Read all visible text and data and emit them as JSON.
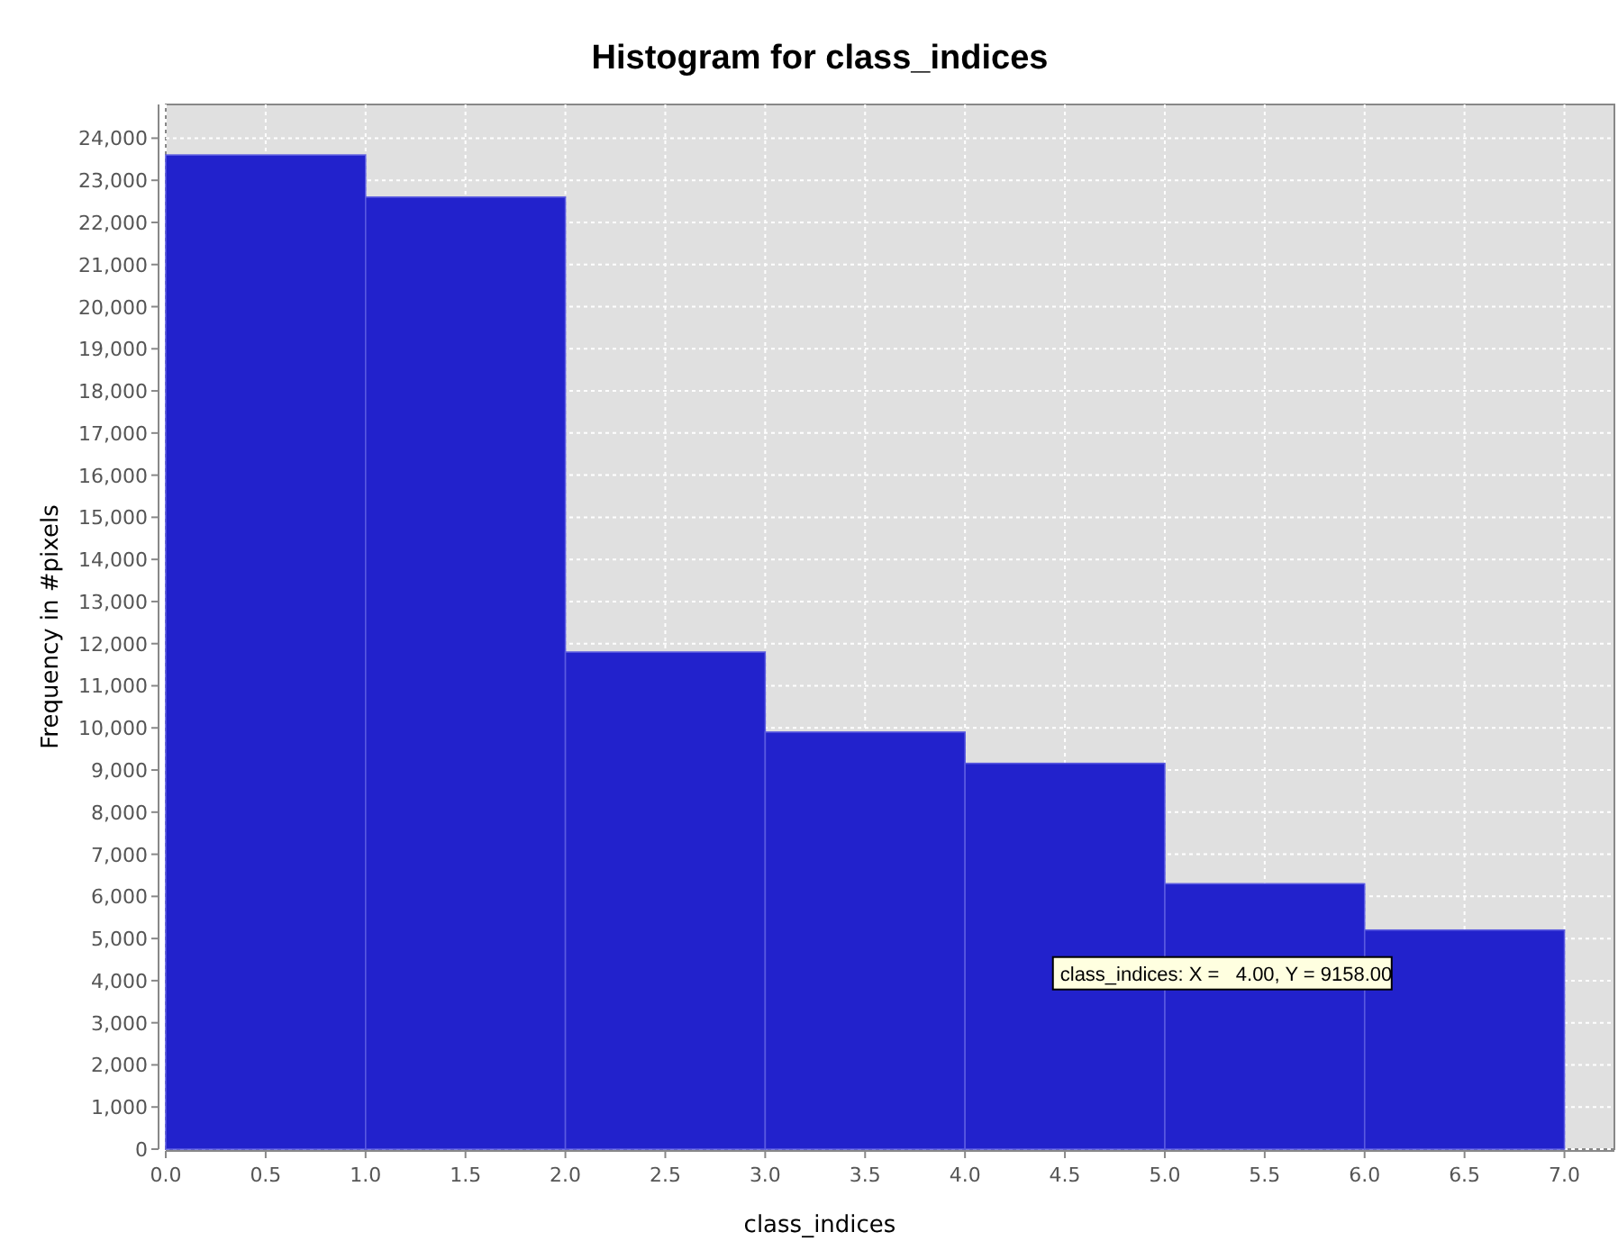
{
  "chart_data": {
    "type": "histogram",
    "title": "Histogram for class_indices",
    "xlabel": "class_indices",
    "ylabel": "Frequency in #pixels",
    "bins": [
      0,
      1,
      2,
      3,
      4,
      5,
      6,
      7
    ],
    "values": [
      23600,
      22600,
      11800,
      9900,
      9158,
      6300,
      5200
    ],
    "color": "#2222cc",
    "xlim": [
      0,
      7.25
    ],
    "xticks": [
      {
        "value": 0,
        "label": "0.0"
      },
      0.5,
      {
        "value": 1,
        "label": "1.0"
      },
      1.5,
      {
        "value": 2,
        "label": "2.0"
      },
      2.5,
      {
        "value": 3,
        "label": "3.0"
      },
      3.5,
      {
        "value": 4,
        "label": "4.0"
      },
      4.5,
      {
        "value": 5,
        "label": "5.0"
      },
      5.5,
      {
        "value": 6,
        "label": "6.0"
      },
      6.5,
      {
        "value": 7,
        "label": "7.0"
      }
    ],
    "ylim": [
      0,
      24800
    ],
    "yticks": [
      0,
      {
        "value": 1000,
        "label": "1,000"
      },
      {
        "value": 2000,
        "label": "2,000"
      },
      {
        "value": 3000,
        "label": "3,000"
      },
      {
        "value": 4000,
        "label": "4,000"
      },
      {
        "value": 5000,
        "label": "5,000"
      },
      {
        "value": 6000,
        "label": "6,000"
      },
      {
        "value": 7000,
        "label": "7,000"
      },
      {
        "value": 8000,
        "label": "8,000"
      },
      {
        "value": 9000,
        "label": "9,000"
      },
      {
        "value": 10000,
        "label": "10,000"
      },
      {
        "value": 11000,
        "label": "11,000"
      },
      {
        "value": 12000,
        "label": "12,000"
      },
      {
        "value": 13000,
        "label": "13,000"
      },
      {
        "value": 14000,
        "label": "14,000"
      },
      {
        "value": 15000,
        "label": "15,000"
      },
      {
        "value": 16000,
        "label": "16,000"
      },
      {
        "value": 17000,
        "label": "17,000"
      },
      {
        "value": 18000,
        "label": "18,000"
      },
      {
        "value": 19000,
        "label": "19,000"
      },
      {
        "value": 20000,
        "label": "20,000"
      },
      {
        "value": 21000,
        "label": "21,000"
      },
      {
        "value": 22000,
        "label": "22,000"
      },
      {
        "value": 23000,
        "label": "23,000"
      },
      {
        "value": 24000,
        "label": "24,000"
      }
    ],
    "grid": true,
    "annotations": [
      "class_indices: X =   4.00, Y = 9158.00"
    ]
  }
}
